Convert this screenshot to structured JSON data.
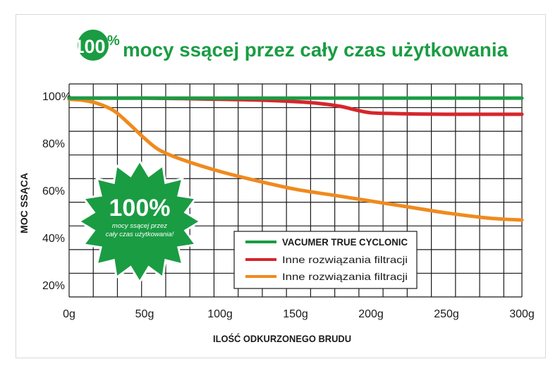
{
  "header": {
    "badge_text": "100",
    "badge_suffix": "%",
    "title": "mocy ssącej przez cały czas użytkowania"
  },
  "colors": {
    "brand_green": "#1a9c43",
    "red": "#d6262c",
    "orange": "#f08a1e",
    "grid": "#1a1a1a"
  },
  "starburst": {
    "big": "100%",
    "line1": "mocy ssącej przez",
    "line2": "cały czas użytkowania!"
  },
  "chart_data": {
    "type": "line",
    "xlabel": "ILOŚĆ ODKURZONEGO BRUDU",
    "ylabel": "MOC SSĄCA",
    "xlim": [
      0,
      300
    ],
    "ylim": [
      15,
      105
    ],
    "x_ticks": [
      "0g",
      "50g",
      "100g",
      "150g",
      "200g",
      "250g",
      "300g"
    ],
    "y_ticks": [
      "100%",
      "80%",
      "60%",
      "40%",
      "20%"
    ],
    "y_tick_values": [
      100,
      80,
      60,
      40,
      20
    ],
    "grid": true,
    "legend_position": "bottom-center",
    "series": [
      {
        "name": "VACUMER TRUE CYCLONIC",
        "color": "#1a9c43",
        "x": [
          0,
          50,
          100,
          150,
          200,
          250,
          300
        ],
        "y": [
          99,
          99,
          99,
          99,
          99,
          99,
          99
        ]
      },
      {
        "name": "Inne rozwiązania filtracji",
        "color": "#d6262c",
        "x": [
          0,
          25,
          50,
          75,
          100,
          125,
          150,
          165,
          180,
          190,
          200,
          215,
          230,
          250,
          275,
          300
        ],
        "y": [
          99,
          99,
          99,
          98.8,
          98.5,
          98.2,
          97.5,
          96.8,
          95.5,
          94,
          92.8,
          92.5,
          92.3,
          92.2,
          92.2,
          92.2
        ]
      },
      {
        "name": "Inne rozwiązania filtracji",
        "color": "#f08a1e",
        "x": [
          0,
          10,
          20,
          30,
          40,
          50,
          60,
          75,
          100,
          125,
          150,
          175,
          200,
          225,
          250,
          275,
          290,
          300
        ],
        "y": [
          98.5,
          98,
          96.5,
          93.5,
          88,
          82,
          77,
          73,
          68,
          64,
          60.5,
          58,
          55.5,
          53,
          50.5,
          48.5,
          47.8,
          47.5
        ]
      }
    ]
  }
}
